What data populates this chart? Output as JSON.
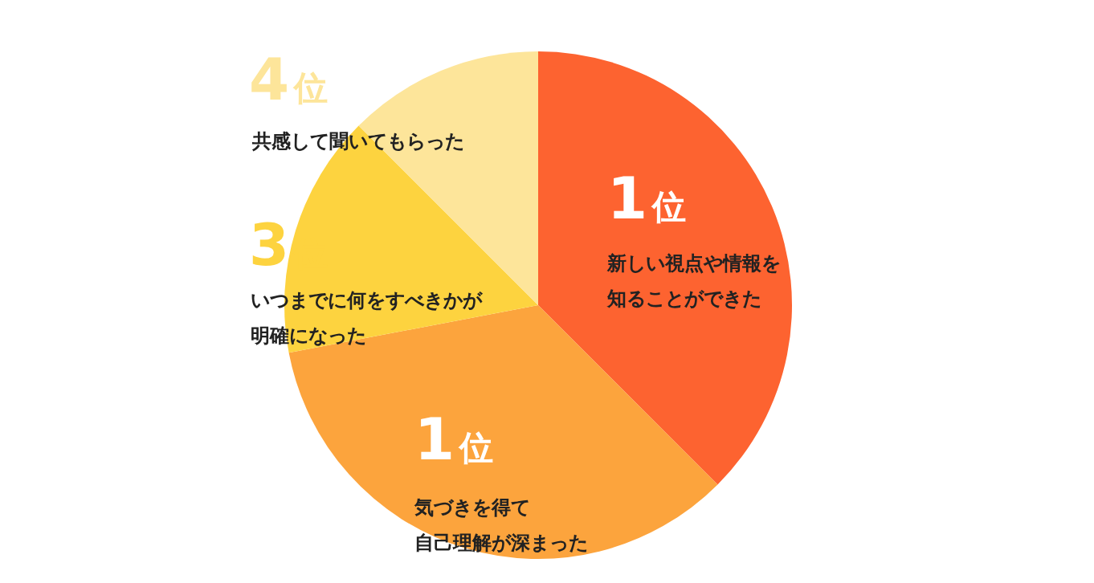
{
  "chart_data": {
    "type": "pie",
    "categories": [
      "新しい視点や情報を知ることができた",
      "気づきを得て自己理解が深まった",
      "いつまでに何をすべきかが明確になった",
      "共感して聞いてもらった"
    ],
    "values": [
      37.5,
      34.5,
      15.5,
      12.5
    ],
    "colors": [
      "#fd6330",
      "#fca43d",
      "#fdd33f",
      "#fde59a"
    ],
    "annotations": [
      {
        "text": "1位",
        "x": "新しい視点や情報を知ることができた"
      },
      {
        "text": "1位",
        "x": "気づきを得て自己理解が深まった"
      },
      {
        "text": "3位",
        "x": "いつまでに何をすべきかが明確になった"
      },
      {
        "text": "4位",
        "x": "共感して聞いてもらった"
      }
    ]
  }
}
